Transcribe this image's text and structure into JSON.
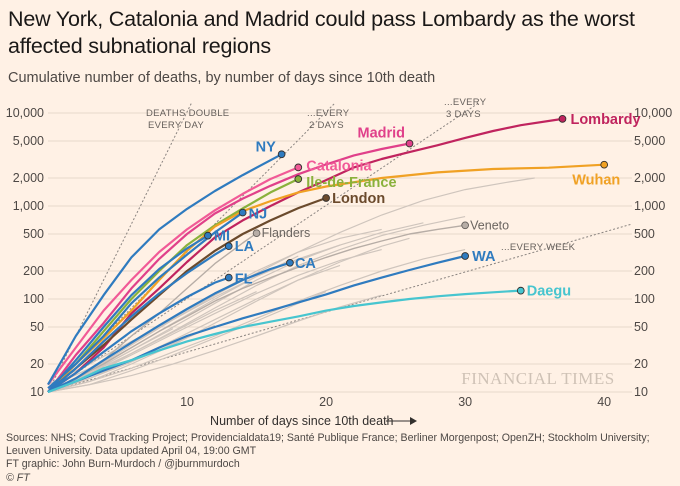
{
  "header": {
    "title": "New York, Catalonia and Madrid could pass Lombardy as the worst affected subnational regions",
    "subtitle": "Cumulative number of deaths, by number of days since 10th death"
  },
  "footer": {
    "sources": "Sources: NHS; Covid Tracking Project; Providencialdata19; Santé Publique France; Berliner Morgenpost; OpenZH; Stockholm University; Leuven University. Data updated April 04, 19:00 GMT",
    "credit": "FT graphic: John Burn-Murdoch / @jburnmurdoch",
    "copyright": "© FT"
  },
  "colors": {
    "background": "#fff1e5",
    "grid": "#e7d9cc",
    "grey_series": "#cfc5bd",
    "reference": "#8a8480"
  },
  "chart_data": {
    "type": "line",
    "xlabel": "Number of days since 10th death",
    "ylabel": "",
    "xlim": [
      0,
      42
    ],
    "ylim": [
      10,
      10000
    ],
    "y_scale": "log",
    "x_ticks": [
      10,
      20,
      30,
      40
    ],
    "y_ticks": [
      10,
      20,
      50,
      100,
      200,
      500,
      1000,
      2000,
      5000,
      10000
    ],
    "y_tick_labels": [
      "10",
      "20",
      "50",
      "100",
      "200",
      "500",
      "1,000",
      "2,000",
      "5,000",
      "10,000"
    ],
    "grid": true,
    "watermark": "FINANCIAL TIMES",
    "reference_lines": [
      {
        "label_lines": [
          "DEATHS DOUBLE",
          "EVERY DAY"
        ],
        "doubling_days": 1
      },
      {
        "label_lines": [
          "...EVERY",
          "2 DAYS"
        ],
        "doubling_days": 2
      },
      {
        "label_lines": [
          "...EVERY",
          "3 DAYS"
        ],
        "doubling_days": 3
      },
      {
        "label_lines": [
          "...EVERY WEEK"
        ],
        "doubling_days": 7
      }
    ],
    "series": [
      {
        "name": "Lombardy",
        "color": "#c0245e",
        "x": [
          0,
          2,
          4,
          6,
          8,
          10,
          12,
          14,
          16,
          18,
          20,
          22,
          24,
          26,
          28,
          30,
          32,
          34,
          37
        ],
        "y": [
          10,
          16,
          30,
          70,
          130,
          250,
          460,
          700,
          1000,
          1400,
          1900,
          2600,
          3200,
          3800,
          4500,
          5400,
          6400,
          7400,
          8650
        ]
      },
      {
        "name": "Madrid",
        "color": "#e0408a",
        "x": [
          0,
          2,
          4,
          6,
          8,
          10,
          12,
          14,
          16,
          18,
          20,
          22,
          24,
          26
        ],
        "y": [
          10,
          25,
          55,
          130,
          270,
          500,
          830,
          1200,
          1650,
          2200,
          2800,
          3500,
          4100,
          4700
        ]
      },
      {
        "name": "Catalonia",
        "color": "#f15a97",
        "x": [
          0,
          2,
          4,
          6,
          8,
          10,
          12,
          14,
          16,
          18
        ],
        "y": [
          12,
          30,
          75,
          160,
          320,
          560,
          900,
          1350,
          1950,
          2600
        ]
      },
      {
        "name": "Ile-de-France",
        "color": "#8ab13c",
        "x": [
          0,
          2,
          4,
          6,
          8,
          10,
          12,
          14,
          16,
          18
        ],
        "y": [
          10,
          20,
          45,
          100,
          200,
          380,
          620,
          940,
          1400,
          1950
        ]
      },
      {
        "name": "Wuhan",
        "color": "#f0a124",
        "x": [
          0,
          2,
          4,
          6,
          8,
          10,
          12,
          14,
          16,
          18,
          20,
          24,
          28,
          32,
          36,
          40
        ],
        "y": [
          10,
          20,
          38,
          75,
          160,
          330,
          600,
          880,
          1130,
          1400,
          1620,
          2000,
          2300,
          2500,
          2580,
          2780
        ]
      },
      {
        "name": "London",
        "color": "#6b4a2c",
        "x": [
          0,
          2,
          4,
          6,
          8,
          10,
          12,
          14,
          16,
          18,
          20
        ],
        "y": [
          10,
          18,
          32,
          60,
          110,
          200,
          330,
          500,
          700,
          950,
          1220
        ]
      },
      {
        "name": "NY",
        "color": "#2f7bbf",
        "x": [
          0,
          2,
          4,
          6,
          8,
          10,
          12,
          14,
          16.8
        ],
        "y": [
          12,
          40,
          110,
          280,
          560,
          930,
          1450,
          2150,
          3600
        ]
      },
      {
        "name": "NJ",
        "color": "#2f7bbf",
        "x": [
          0,
          2,
          4,
          6,
          8,
          10,
          12,
          14
        ],
        "y": [
          11,
          20,
          40,
          90,
          170,
          300,
          520,
          850
        ]
      },
      {
        "name": "MI",
        "color": "#2f7bbf",
        "x": [
          0,
          2,
          4,
          6,
          8,
          10,
          11.5
        ],
        "y": [
          10,
          22,
          50,
          110,
          210,
          350,
          480
        ]
      },
      {
        "name": "LA",
        "color": "#2f7bbf",
        "x": [
          0,
          2,
          4,
          6,
          8,
          10,
          12,
          13
        ],
        "y": [
          10,
          18,
          35,
          65,
          115,
          190,
          300,
          370
        ]
      },
      {
        "name": "FL",
        "color": "#2f7bbf",
        "x": [
          0,
          2,
          4,
          6,
          8,
          10,
          12,
          13
        ],
        "y": [
          10,
          16,
          27,
          45,
          70,
          105,
          150,
          170
        ]
      },
      {
        "name": "CA",
        "color": "#2f7bbf",
        "x": [
          0,
          2,
          4,
          6,
          8,
          10,
          12,
          14,
          16,
          17.4
        ],
        "y": [
          10,
          14,
          22,
          34,
          52,
          78,
          115,
          160,
          210,
          245
        ]
      },
      {
        "name": "WA",
        "color": "#2f7bbf",
        "x": [
          0,
          2,
          4,
          6,
          8,
          10,
          12,
          14,
          16,
          18,
          20,
          22,
          24,
          26,
          28,
          30
        ],
        "y": [
          10,
          13,
          17,
          22,
          30,
          40,
          50,
          62,
          75,
          92,
          112,
          140,
          170,
          205,
          245,
          290
        ]
      },
      {
        "name": "Daegu",
        "color": "#47c5cf",
        "x": [
          0,
          2,
          4,
          6,
          8,
          10,
          12,
          14,
          16,
          18,
          20,
          22,
          24,
          26,
          28,
          30,
          32,
          34
        ],
        "y": [
          10,
          13,
          18,
          22,
          28,
          35,
          42,
          50,
          57,
          65,
          75,
          84,
          92,
          100,
          107,
          113,
          118,
          123
        ]
      },
      {
        "name": "Veneto",
        "color": "#b7ada6",
        "x": [
          0,
          2,
          4,
          6,
          8,
          10,
          12,
          14,
          16,
          18,
          20,
          22,
          24,
          26,
          28,
          30
        ],
        "y": [
          10,
          14,
          20,
          30,
          45,
          65,
          95,
          130,
          170,
          220,
          280,
          350,
          420,
          500,
          560,
          620
        ]
      },
      {
        "name": "Flanders",
        "color": "#b7ada6",
        "x": [
          0,
          2,
          4,
          6,
          8,
          10,
          12,
          14,
          15
        ],
        "y": [
          10,
          14,
          22,
          40,
          70,
          130,
          240,
          400,
          510
        ]
      }
    ],
    "grey_series": [
      {
        "x": [
          0,
          3,
          6,
          9,
          12,
          15,
          18,
          21,
          24,
          27,
          30,
          33,
          35
        ],
        "y": [
          10,
          17,
          32,
          60,
          110,
          190,
          320,
          520,
          800,
          1150,
          1500,
          1800,
          2000
        ]
      },
      {
        "x": [
          0,
          3,
          6,
          9,
          12,
          15,
          18,
          21,
          24,
          27,
          30
        ],
        "y": [
          10,
          15,
          26,
          45,
          80,
          140,
          230,
          340,
          480,
          620,
          770
        ]
      },
      {
        "x": [
          0,
          3,
          6,
          9,
          12,
          15,
          18,
          21,
          24,
          27
        ],
        "y": [
          10,
          16,
          28,
          50,
          90,
          160,
          260,
          380,
          520,
          660
        ]
      },
      {
        "x": [
          0,
          3,
          6,
          9,
          12,
          15,
          18,
          21,
          24,
          26
        ],
        "y": [
          10,
          13,
          20,
          32,
          55,
          95,
          160,
          250,
          370,
          450
        ]
      },
      {
        "x": [
          0,
          3,
          6,
          9,
          12,
          15,
          18,
          21,
          24
        ],
        "y": [
          11,
          18,
          33,
          62,
          115,
          200,
          320,
          450,
          560
        ]
      },
      {
        "x": [
          0,
          3,
          6,
          9,
          12,
          15,
          18,
          21
        ],
        "y": [
          10,
          14,
          22,
          36,
          60,
          100,
          160,
          230
        ]
      },
      {
        "x": [
          0,
          3,
          6,
          9,
          12,
          15,
          18,
          20
        ],
        "y": [
          10,
          12,
          17,
          25,
          38,
          58,
          90,
          120
        ]
      },
      {
        "x": [
          0,
          3,
          6,
          9,
          12,
          15,
          18,
          21,
          24
        ],
        "y": [
          10,
          15,
          25,
          42,
          70,
          115,
          180,
          260,
          340
        ]
      },
      {
        "x": [
          0,
          3,
          6,
          9,
          12,
          15,
          18
        ],
        "y": [
          10,
          17,
          30,
          55,
          100,
          175,
          290
        ]
      },
      {
        "x": [
          0,
          3,
          6,
          9,
          12,
          15
        ],
        "y": [
          10,
          16,
          26,
          44,
          75,
          120
        ]
      },
      {
        "x": [
          0,
          3,
          6,
          9,
          12
        ],
        "y": [
          10,
          14,
          21,
          33,
          52
        ]
      },
      {
        "x": [
          0,
          3,
          6,
          9,
          12,
          15,
          18,
          21
        ],
        "y": [
          12,
          20,
          35,
          60,
          105,
          175,
          270,
          380
        ]
      },
      {
        "x": [
          0,
          3,
          6,
          9,
          12,
          15,
          18,
          21,
          24,
          27,
          30
        ],
        "y": [
          10,
          13,
          18,
          27,
          40,
          62,
          95,
          140,
          200,
          270,
          340
        ]
      },
      {
        "x": [
          0,
          3,
          6,
          9
        ],
        "y": [
          10,
          16,
          28,
          48
        ]
      },
      {
        "x": [
          0,
          3,
          6,
          9,
          12,
          15,
          18,
          21,
          24
        ],
        "y": [
          10,
          12,
          15,
          20,
          28,
          40,
          58,
          82,
          110
        ]
      }
    ]
  }
}
